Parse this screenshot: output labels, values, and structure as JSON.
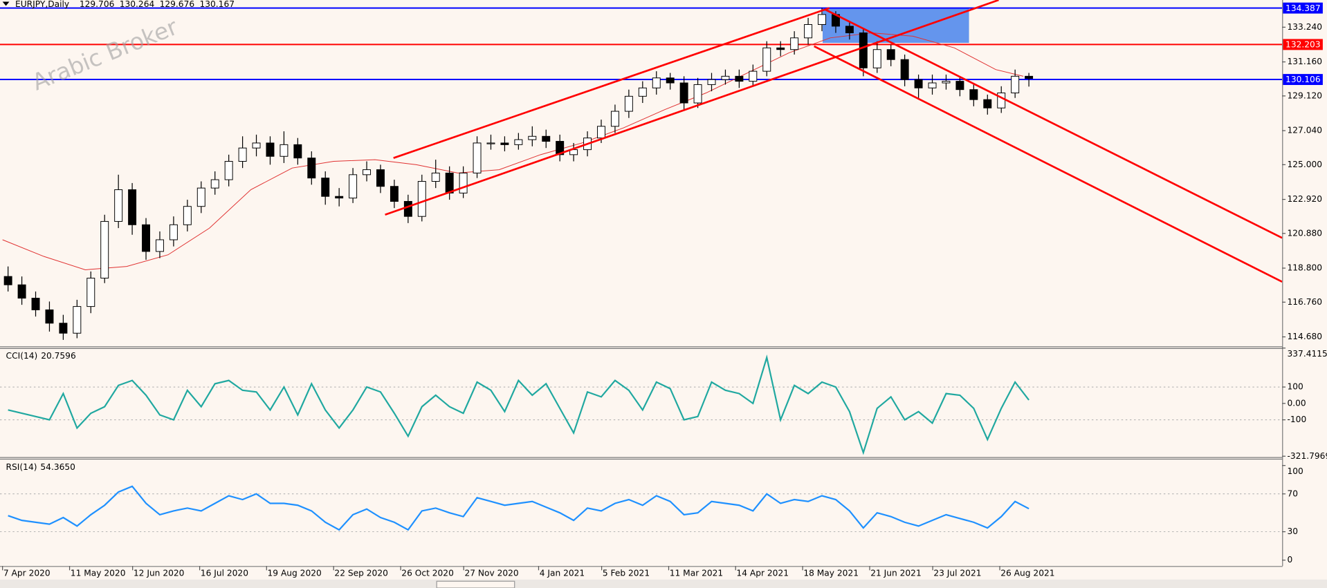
{
  "chart_data": [
    {
      "type": "candlestick",
      "title": "EURJPY,Daily",
      "ohlc": [
        129.706,
        130.264,
        129.676,
        130.167
      ],
      "watermark": "Arabic Broker",
      "xlim": [
        -0.184,
        92.76
      ],
      "ylim": [
        114.11,
        134.87
      ],
      "yticks": [
        {
          "value": 133.24,
          "label": "133.240"
        },
        {
          "value": 131.16,
          "label": "131.160"
        },
        {
          "value": 129.12,
          "label": "129.120"
        },
        {
          "value": 127.04,
          "label": "127.040"
        },
        {
          "value": 125,
          "label": "125.000"
        },
        {
          "value": 122.92,
          "label": "122.920"
        },
        {
          "value": 120.88,
          "label": "120.880"
        },
        {
          "value": 118.8,
          "label": "118.800"
        },
        {
          "value": 116.76,
          "label": "116.760"
        },
        {
          "value": 114.68,
          "label": "114.680"
        }
      ],
      "up_color": "#ffffff",
      "down_color": "#000000",
      "candles": [
        [
          118.3,
          118.9,
          117.4,
          117.8
        ],
        [
          117.8,
          118.3,
          116.6,
          117.0
        ],
        [
          117.0,
          117.4,
          115.9,
          116.3
        ],
        [
          116.3,
          116.8,
          115.0,
          115.5
        ],
        [
          115.5,
          116.0,
          114.5,
          114.9
        ],
        [
          114.9,
          116.9,
          114.6,
          116.5
        ],
        [
          116.5,
          118.6,
          116.1,
          118.2
        ],
        [
          118.2,
          122.0,
          117.9,
          121.6
        ],
        [
          121.6,
          124.4,
          121.2,
          123.5
        ],
        [
          123.5,
          123.9,
          120.8,
          121.4
        ],
        [
          121.4,
          121.8,
          119.3,
          119.8
        ],
        [
          119.8,
          121.0,
          119.4,
          120.5
        ],
        [
          120.5,
          121.9,
          120.1,
          121.4
        ],
        [
          121.4,
          122.9,
          121.0,
          122.5
        ],
        [
          122.5,
          124.0,
          122.1,
          123.6
        ],
        [
          123.6,
          124.6,
          123.2,
          124.1
        ],
        [
          124.1,
          125.6,
          123.7,
          125.2
        ],
        [
          125.2,
          126.7,
          124.8,
          126.0
        ],
        [
          126.0,
          126.8,
          125.5,
          126.3
        ],
        [
          126.3,
          126.7,
          125.0,
          125.5
        ],
        [
          125.5,
          127.0,
          125.1,
          126.2
        ],
        [
          126.2,
          126.6,
          125.0,
          125.4
        ],
        [
          125.4,
          125.8,
          123.8,
          124.2
        ],
        [
          124.2,
          124.6,
          122.6,
          123.1
        ],
        [
          123.1,
          123.6,
          122.5,
          123.0
        ],
        [
          123.0,
          124.8,
          122.7,
          124.4
        ],
        [
          124.4,
          125.2,
          124.0,
          124.7
        ],
        [
          124.7,
          125.0,
          123.3,
          123.7
        ],
        [
          123.7,
          124.1,
          122.4,
          122.8
        ],
        [
          122.8,
          123.2,
          121.5,
          121.9
        ],
        [
          121.9,
          124.4,
          121.6,
          124.0
        ],
        [
          124.0,
          125.3,
          123.6,
          124.5
        ],
        [
          124.5,
          124.9,
          122.9,
          123.3
        ],
        [
          123.3,
          124.9,
          123.0,
          124.5
        ],
        [
          124.5,
          126.7,
          124.2,
          126.3
        ],
        [
          126.3,
          126.8,
          125.9,
          126.3
        ],
        [
          126.3,
          126.7,
          125.8,
          126.2
        ],
        [
          126.2,
          126.9,
          125.9,
          126.5
        ],
        [
          126.5,
          127.3,
          126.1,
          126.7
        ],
        [
          126.7,
          127.1,
          126.0,
          126.4
        ],
        [
          126.4,
          126.8,
          125.2,
          125.6
        ],
        [
          125.6,
          126.3,
          125.2,
          125.9
        ],
        [
          125.9,
          127.0,
          125.5,
          126.6
        ],
        [
          126.6,
          127.7,
          126.3,
          127.3
        ],
        [
          127.3,
          128.6,
          126.9,
          128.2
        ],
        [
          128.2,
          129.5,
          127.8,
          129.1
        ],
        [
          129.1,
          130.0,
          128.7,
          129.6
        ],
        [
          129.6,
          130.6,
          129.2,
          130.2
        ],
        [
          130.2,
          130.5,
          129.5,
          129.9
        ],
        [
          129.9,
          130.3,
          128.3,
          128.7
        ],
        [
          128.7,
          130.2,
          128.4,
          129.8
        ],
        [
          129.8,
          130.5,
          129.4,
          130.1
        ],
        [
          130.1,
          130.7,
          129.8,
          130.3
        ],
        [
          130.3,
          130.7,
          129.6,
          130.0
        ],
        [
          130.0,
          131.0,
          129.7,
          130.6
        ],
        [
          130.6,
          132.4,
          130.3,
          132.0
        ],
        [
          132.0,
          132.4,
          131.5,
          131.9
        ],
        [
          131.9,
          133.0,
          131.6,
          132.6
        ],
        [
          132.6,
          133.8,
          132.2,
          133.4
        ],
        [
          133.4,
          134.4,
          133.0,
          134.0
        ],
        [
          134.0,
          134.2,
          132.9,
          133.3
        ],
        [
          133.3,
          133.6,
          132.5,
          132.9
        ],
        [
          132.9,
          133.2,
          130.3,
          130.8
        ],
        [
          130.8,
          132.4,
          130.5,
          131.9
        ],
        [
          131.9,
          132.2,
          130.9,
          131.3
        ],
        [
          131.3,
          131.6,
          129.7,
          130.1
        ],
        [
          130.1,
          130.4,
          129.0,
          129.6
        ],
        [
          129.6,
          130.4,
          129.2,
          129.9
        ],
        [
          129.9,
          130.4,
          129.5,
          130.0
        ],
        [
          130.0,
          130.3,
          129.1,
          129.5
        ],
        [
          129.5,
          129.8,
          128.5,
          128.9
        ],
        [
          128.9,
          129.2,
          128.0,
          128.4
        ],
        [
          128.4,
          129.7,
          128.1,
          129.3
        ],
        [
          129.3,
          130.7,
          129.0,
          130.3
        ],
        [
          130.3,
          130.5,
          129.68,
          130.17
        ]
      ],
      "series": [
        {
          "color": "#e03030",
          "x": [
            0,
            3,
            6,
            9,
            12,
            15,
            18,
            21,
            24,
            27,
            30,
            33,
            36,
            39,
            42,
            45,
            48,
            51,
            54,
            57,
            60,
            63,
            66,
            69,
            72,
            74
          ],
          "values": [
            120.5,
            119.5,
            118.7,
            118.9,
            119.6,
            121.2,
            123.5,
            124.8,
            125.2,
            125.3,
            125.0,
            124.5,
            124.7,
            125.6,
            126.3,
            127.2,
            128.3,
            129.3,
            130.5,
            131.7,
            132.6,
            132.9,
            132.7,
            132.0,
            130.7,
            130.3
          ]
        }
      ],
      "levels": [
        {
          "value": 134.387,
          "color": "#0000ff"
        },
        {
          "value": 132.203,
          "color": "#ff0000"
        },
        {
          "value": 130.106,
          "color": "#0000ff"
        }
      ],
      "zone": {
        "x": [
          59.45,
          70.06
        ],
        "y": [
          132.3,
          134.387
        ],
        "color": "#6495ed"
      },
      "trendlines": [
        [
          27.73,
          122.0,
          72.21,
          134.87
        ],
        [
          28.34,
          125.4,
          59.94,
          134.39
        ],
        [
          59.63,
          134.3,
          92.76,
          120.61
        ],
        [
          58.83,
          132.1,
          92.76,
          117.98
        ]
      ],
      "trendline_color": "#ff0000"
    },
    {
      "type": "line",
      "title": "CCI(14)",
      "current": 20.7596,
      "xlim": [
        -0.184,
        92.76
      ],
      "ylim": [
        -321.7969,
        337.4115
      ],
      "yticks": [
        337.4115,
        100,
        {
          "value": 0,
          "label": "0.00"
        },
        -100,
        -321.7969
      ],
      "series": [
        {
          "color": "#20a8a0",
          "values": [
            -40,
            -60,
            -80,
            -100,
            60,
            -150,
            -60,
            -20,
            110,
            140,
            50,
            -70,
            -100,
            80,
            -20,
            120,
            140,
            80,
            70,
            -40,
            100,
            -70,
            120,
            -40,
            -150,
            -40,
            100,
            70,
            -60,
            -200,
            -20,
            50,
            -20,
            -60,
            130,
            80,
            -50,
            140,
            50,
            120,
            -30,
            -180,
            70,
            40,
            140,
            80,
            -40,
            130,
            90,
            -100,
            -80,
            130,
            80,
            60,
            0,
            280,
            -100,
            110,
            60,
            130,
            100,
            -50,
            -300,
            -30,
            40,
            -100,
            -50,
            -120,
            60,
            50,
            -30,
            -220,
            -30,
            130,
            20.7596
          ]
        }
      ]
    },
    {
      "type": "line",
      "title": "RSI(14)",
      "current": {
        "value": 54.365,
        "label": "54.3650"
      },
      "xlim": [
        -0.184,
        92.76
      ],
      "ylim": [
        0,
        100
      ],
      "yticks": [
        100,
        70,
        30,
        0
      ],
      "series": [
        {
          "color": "#1e90ff",
          "values": [
            47,
            42,
            40,
            38,
            45,
            36,
            48,
            58,
            72,
            78,
            60,
            48,
            52,
            55,
            52,
            60,
            68,
            64,
            70,
            60,
            60,
            58,
            52,
            40,
            32,
            48,
            54,
            45,
            40,
            32,
            52,
            55,
            50,
            46,
            66,
            62,
            58,
            60,
            62,
            56,
            50,
            42,
            55,
            52,
            60,
            64,
            58,
            68,
            62,
            48,
            50,
            62,
            60,
            58,
            52,
            70,
            60,
            64,
            62,
            68,
            64,
            52,
            34,
            50,
            46,
            40,
            36,
            42,
            48,
            44,
            40,
            34,
            46,
            62,
            54.365
          ]
        }
      ],
      "xticks": [
        {
          "value": 0,
          "label": "7 Apr 2020"
        },
        {
          "value": 4.86,
          "label": "11 May 2020"
        },
        {
          "value": 9.43,
          "label": "12 Jun 2020"
        },
        {
          "value": 14.29,
          "label": "16 Jul 2020"
        },
        {
          "value": 19.14,
          "label": "19 Aug 2020"
        },
        {
          "value": 24,
          "label": "22 Sep 2020"
        },
        {
          "value": 28.86,
          "label": "26 Oct 2020"
        },
        {
          "value": 33.43,
          "label": "27 Nov 2020"
        },
        {
          "value": 38.86,
          "label": "4 Jan 2021"
        },
        {
          "value": 43.43,
          "label": "5 Feb 2021"
        },
        {
          "value": 48.29,
          "label": "11 Mar 2021"
        },
        {
          "value": 53.14,
          "label": "14 Apr 2021"
        },
        {
          "value": 58,
          "label": "18 May 2021"
        },
        {
          "value": 62.86,
          "label": "21 Jun 2021"
        },
        {
          "value": 67.43,
          "label": "23 Jul 2021"
        },
        {
          "value": 72.29,
          "label": "26 Aug 2021"
        }
      ]
    }
  ]
}
